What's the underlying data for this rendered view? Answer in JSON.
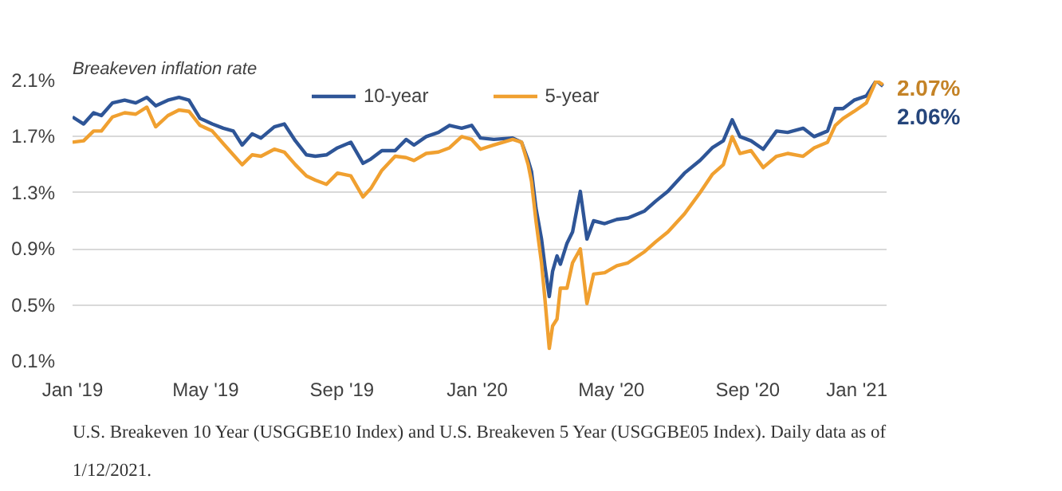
{
  "chart_data": {
    "type": "line",
    "ylabel": "Breakeven inflation rate",
    "x": [
      "2019-01-01",
      "2019-01-11",
      "2019-01-20",
      "2019-01-27",
      "2019-02-06",
      "2019-02-17",
      "2019-02-27",
      "2019-03-09",
      "2019-03-17",
      "2019-03-28",
      "2019-04-07",
      "2019-04-16",
      "2019-04-26",
      "2019-05-07",
      "2019-05-17",
      "2019-05-26",
      "2019-06-03",
      "2019-06-12",
      "2019-06-20",
      "2019-07-02",
      "2019-07-11",
      "2019-07-21",
      "2019-07-31",
      "2019-08-08",
      "2019-08-18",
      "2019-08-28",
      "2019-09-09",
      "2019-09-20",
      "2019-09-27",
      "2019-10-07",
      "2019-10-19",
      "2019-10-29",
      "2019-11-05",
      "2019-11-16",
      "2019-11-27",
      "2019-12-07",
      "2019-12-18",
      "2019-12-27",
      "2020-01-04",
      "2020-01-16",
      "2020-02-02",
      "2020-02-10",
      "2020-02-16",
      "2020-02-19",
      "2020-02-23",
      "2020-02-28",
      "2020-03-02",
      "2020-03-06",
      "2020-03-09",
      "2020-03-13",
      "2020-03-16",
      "2020-03-22",
      "2020-03-27",
      "2020-04-03",
      "2020-04-09",
      "2020-04-15",
      "2020-04-25",
      "2020-05-06",
      "2020-05-16",
      "2020-05-31",
      "2020-06-10",
      "2020-06-21",
      "2020-07-06",
      "2020-07-20",
      "2020-07-31",
      "2020-08-10",
      "2020-08-18",
      "2020-08-25",
      "2020-09-04",
      "2020-09-15",
      "2020-09-27",
      "2020-10-07",
      "2020-10-21",
      "2020-10-31",
      "2020-11-12",
      "2020-11-19",
      "2020-11-26",
      "2020-12-06",
      "2020-12-17",
      "2020-12-26",
      "2021-01-01"
    ],
    "series": [
      {
        "name": "10-year",
        "color": "#2e5597",
        "values": [
          1.84,
          1.79,
          1.87,
          1.85,
          1.94,
          1.96,
          1.94,
          1.98,
          1.92,
          1.96,
          1.98,
          1.96,
          1.83,
          1.79,
          1.76,
          1.74,
          1.64,
          1.72,
          1.69,
          1.77,
          1.79,
          1.67,
          1.57,
          1.56,
          1.57,
          1.62,
          1.66,
          1.51,
          1.54,
          1.6,
          1.6,
          1.68,
          1.64,
          1.7,
          1.73,
          1.78,
          1.76,
          1.78,
          1.69,
          1.68,
          1.69,
          1.66,
          1.53,
          1.45,
          1.19,
          0.97,
          0.78,
          0.56,
          0.74,
          0.85,
          0.79,
          0.94,
          1.02,
          1.31,
          0.97,
          1.1,
          1.08,
          1.11,
          1.12,
          1.17,
          1.24,
          1.31,
          1.44,
          1.53,
          1.62,
          1.67,
          1.82,
          1.7,
          1.67,
          1.61,
          1.74,
          1.73,
          1.76,
          1.7,
          1.74,
          1.9,
          1.9,
          1.96,
          1.99,
          2.1,
          2.06
        ]
      },
      {
        "name": "5-year",
        "color": "#f0a030",
        "values": [
          1.66,
          1.67,
          1.74,
          1.74,
          1.84,
          1.87,
          1.86,
          1.91,
          1.77,
          1.85,
          1.89,
          1.88,
          1.78,
          1.74,
          1.65,
          1.57,
          1.5,
          1.57,
          1.56,
          1.61,
          1.59,
          1.5,
          1.42,
          1.39,
          1.36,
          1.44,
          1.42,
          1.27,
          1.33,
          1.46,
          1.56,
          1.55,
          1.53,
          1.58,
          1.59,
          1.62,
          1.7,
          1.68,
          1.61,
          1.64,
          1.68,
          1.66,
          1.5,
          1.38,
          1.1,
          0.8,
          0.55,
          0.19,
          0.35,
          0.4,
          0.62,
          0.62,
          0.8,
          0.9,
          0.51,
          0.72,
          0.73,
          0.78,
          0.8,
          0.88,
          0.95,
          1.02,
          1.15,
          1.3,
          1.43,
          1.5,
          1.7,
          1.58,
          1.6,
          1.48,
          1.56,
          1.58,
          1.56,
          1.62,
          1.66,
          1.78,
          1.83,
          1.88,
          1.94,
          2.1,
          2.07
        ]
      }
    ],
    "annotations": [
      {
        "text": "2.07%",
        "x": "2021-01-01",
        "y": 2.07
      },
      {
        "text": "2.06%",
        "x": "2021-01-01",
        "y": 2.06
      },
      "U.S. Breakeven 10 Year (USGGBE10 Index) and U.S. Breakeven 5 Year (USGGBE05 Index). Daily data as of 1/12/2021."
    ],
    "ylim": [
      0.1,
      2.1
    ],
    "yticks": [
      {
        "value": 0.1,
        "label": "0.1%"
      },
      {
        "value": 0.5,
        "label": "0.5%"
      },
      {
        "value": 0.9,
        "label": "0.9%"
      },
      {
        "value": 1.3,
        "label": "1.3%"
      },
      {
        "value": 1.7,
        "label": "1.7%"
      },
      {
        "value": 2.1,
        "label": "2.1%"
      }
    ],
    "xlim": [
      "2019-01-01",
      "2021-01-05"
    ],
    "xticks": [
      {
        "value": "2019-01-01",
        "label": "Jan '19"
      },
      {
        "value": "2019-05-01",
        "label": "May '19"
      },
      {
        "value": "2019-09-01",
        "label": "Sep '19"
      },
      {
        "value": "2020-01-01",
        "label": "Jan '20"
      },
      {
        "value": "2020-05-01",
        "label": "May '20"
      },
      {
        "value": "2020-09-01",
        "label": "Sep '20"
      },
      {
        "value": "2021-01-01",
        "label": "Jan '21"
      }
    ],
    "grid": "y",
    "legend": "top",
    "marker": "none",
    "line_style": "solid"
  }
}
